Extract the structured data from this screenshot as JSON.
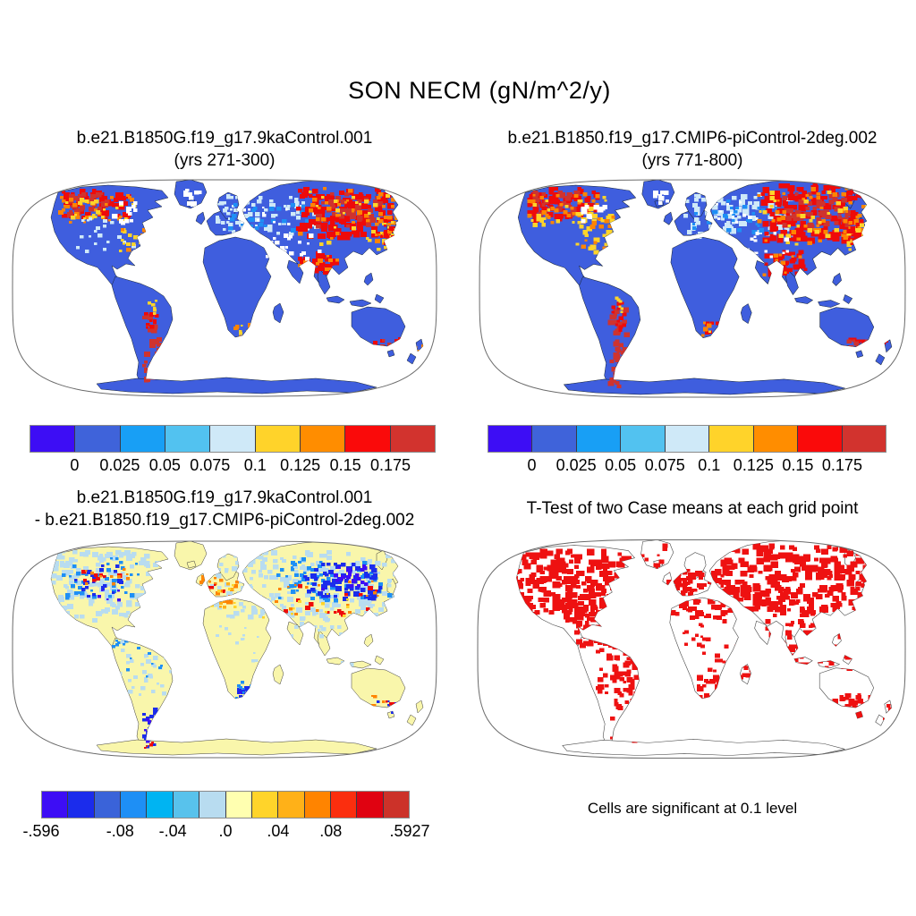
{
  "figure": {
    "title": "SON NECM (gN/m^2/y)"
  },
  "panels": [
    {
      "title_line1": "b.e21.B1850G.f19_g17.9kaControl.001",
      "title_line2": "(yrs 271-300)"
    },
    {
      "title_line1": "b.e21.B1850.f19_g17.CMIP6-piControl-2deg.002",
      "title_line2": "(yrs 771-800)"
    },
    {
      "title_line1": "b.e21.B1850G.f19_g17.9kaControl.001",
      "title_line2": "- b.e21.B1850.f19_g17.CMIP6-piControl-2deg.002"
    },
    {
      "title": "T-Test of two Case means at each grid point",
      "footnote": "Cells are significant at 0.1 level"
    }
  ],
  "colorbar_top": {
    "colors": [
      "#3d0df5",
      "#3f63da",
      "#189ff5",
      "#52c2f0",
      "#cfe9f8",
      "#ffd32a",
      "#ff8d00",
      "#fa0a0a",
      "#d2332e"
    ],
    "ticks": [
      "0",
      "0.025",
      "0.05",
      "0.075",
      "0.1",
      "0.125",
      "0.15",
      "0.175"
    ]
  },
  "colorbar_diff": {
    "colors": [
      "#3d0df5",
      "#1b2cec",
      "#3a63d9",
      "#1e8ff5",
      "#00b4f2",
      "#58c2ec",
      "#b8dcf0",
      "#ffffb0",
      "#ffd42a",
      "#ffb118",
      "#ff8400",
      "#fb2e0e",
      "#e00211",
      "#cc3229"
    ],
    "ticks": [
      {
        "label": "-.596",
        "pos": 0
      },
      {
        "label": "-.08",
        "pos": 3
      },
      {
        "label": "-.04",
        "pos": 5
      },
      {
        "label": ".0",
        "pos": 7
      },
      {
        "label": ".04",
        "pos": 9
      },
      {
        "label": ".08",
        "pos": 11
      },
      {
        "label": ".5927",
        "pos": 14
      }
    ]
  },
  "map": {
    "globe_stroke": "#6b6b6b",
    "land_colors": {
      "tl": "#3f5ede",
      "tr": "#3f5ede",
      "bl": "#f9f6ab",
      "br": "#ffffff"
    },
    "coast_colors": {
      "tl": "#16222e",
      "tr": "#16222e",
      "bl": "#3c3c3c",
      "br": "#4a4a4a"
    },
    "palette": {
      "v": "#3d0df5",
      "b": "#1b2cec",
      "rb": "#3f63da",
      "db": "#1e8ff5",
      "cy": "#00b4f2",
      "sk": "#58c2ec",
      "lb": "#b8dcf0",
      "pb": "#cfe9f8",
      "py": "#ffffb0",
      "y": "#ffd42a",
      "am": "#ffb118",
      "o": "#ff8400",
      "ro": "#fb2e0e",
      "r": "#ee0a0a",
      "dr": "#cf332e",
      "wh": "#ffffff",
      "sg": "#ee1111"
    },
    "regions": {
      "tl": [
        [
          "r",
          55,
          14,
          74,
          32,
          80,
          5
        ],
        [
          "dr",
          60,
          16,
          46,
          24,
          25,
          5
        ],
        [
          "o",
          52,
          18,
          80,
          32,
          30,
          4
        ],
        [
          "y",
          58,
          22,
          80,
          30,
          22,
          4
        ],
        [
          "pb",
          70,
          42,
          70,
          40,
          22,
          4
        ],
        [
          "y",
          118,
          52,
          52,
          30,
          16,
          4
        ],
        [
          "o",
          122,
          56,
          46,
          26,
          10,
          4
        ],
        [
          "r",
          148,
          58,
          20,
          16,
          6,
          4
        ],
        [
          "wh",
          112,
          28,
          26,
          22,
          12,
          5
        ],
        [
          "wh",
          190,
          10,
          22,
          20,
          10,
          5
        ],
        [
          "pb",
          226,
          20,
          112,
          42,
          80,
          4
        ],
        [
          "db",
          238,
          28,
          92,
          32,
          28,
          4
        ],
        [
          "wh",
          250,
          30,
          60,
          24,
          12,
          3
        ],
        [
          "r",
          318,
          10,
          104,
          56,
          140,
          6
        ],
        [
          "dr",
          338,
          18,
          72,
          36,
          45,
          5
        ],
        [
          "o",
          314,
          12,
          112,
          58,
          36,
          4
        ],
        [
          "y",
          316,
          16,
          112,
          58,
          26,
          4
        ],
        [
          "r",
          320,
          84,
          42,
          22,
          36,
          5
        ],
        [
          "o",
          318,
          86,
          46,
          24,
          12,
          4
        ],
        [
          "o",
          406,
          40,
          26,
          40,
          18,
          4
        ],
        [
          "y",
          408,
          44,
          24,
          38,
          12,
          4
        ],
        [
          "r",
          412,
          50,
          18,
          26,
          8,
          4
        ],
        [
          "dr",
          146,
          150,
          16,
          82,
          32,
          5
        ],
        [
          "r",
          148,
          144,
          14,
          30,
          10,
          4
        ],
        [
          "y",
          149,
          138,
          12,
          16,
          6,
          3
        ],
        [
          "o",
          248,
          164,
          26,
          16,
          10,
          4
        ],
        [
          "y",
          252,
          166,
          22,
          12,
          8,
          3
        ],
        [
          "r",
          404,
          180,
          30,
          12,
          10,
          4
        ],
        [
          "dr",
          408,
          182,
          24,
          10,
          6,
          4
        ],
        [
          "o",
          448,
          184,
          12,
          24,
          8,
          3
        ],
        [
          "wh",
          282,
          62,
          64,
          28,
          18,
          4
        ]
      ],
      "tr": [
        [
          "r",
          52,
          12,
          80,
          34,
          90,
          5
        ],
        [
          "dr",
          58,
          16,
          50,
          26,
          28,
          5
        ],
        [
          "o",
          50,
          18,
          84,
          32,
          32,
          4
        ],
        [
          "y",
          56,
          22,
          84,
          32,
          24,
          4
        ],
        [
          "y",
          108,
          38,
          74,
          44,
          40,
          5
        ],
        [
          "o",
          112,
          44,
          66,
          38,
          22,
          4
        ],
        [
          "r",
          150,
          62,
          24,
          16,
          8,
          4
        ],
        [
          "dr",
          160,
          56,
          16,
          12,
          5,
          4
        ],
        [
          "wh",
          112,
          28,
          26,
          20,
          10,
          5
        ],
        [
          "wh",
          190,
          10,
          22,
          20,
          10,
          5
        ],
        [
          "pb",
          224,
          18,
          124,
          46,
          100,
          5
        ],
        [
          "db",
          236,
          26,
          100,
          36,
          34,
          4
        ],
        [
          "wh",
          248,
          28,
          64,
          26,
          12,
          3
        ],
        [
          "r",
          314,
          8,
          110,
          60,
          160,
          6
        ],
        [
          "dr",
          336,
          16,
          76,
          38,
          50,
          5
        ],
        [
          "o",
          310,
          10,
          118,
          62,
          38,
          4
        ],
        [
          "y",
          312,
          14,
          118,
          62,
          28,
          4
        ],
        [
          "r",
          318,
          82,
          44,
          24,
          38,
          5
        ],
        [
          "o",
          316,
          84,
          48,
          26,
          12,
          4
        ],
        [
          "o",
          404,
          38,
          28,
          42,
          20,
          4
        ],
        [
          "y",
          406,
          42,
          26,
          40,
          13,
          4
        ],
        [
          "r",
          410,
          48,
          20,
          28,
          9,
          4
        ],
        [
          "dr",
          144,
          146,
          18,
          88,
          38,
          5
        ],
        [
          "r",
          146,
          140,
          16,
          32,
          12,
          4
        ],
        [
          "y",
          148,
          134,
          12,
          16,
          6,
          3
        ],
        [
          "r",
          250,
          160,
          26,
          20,
          14,
          4
        ],
        [
          "o",
          246,
          162,
          28,
          18,
          10,
          4
        ],
        [
          "y",
          250,
          166,
          24,
          14,
          7,
          3
        ],
        [
          "r",
          402,
          178,
          32,
          14,
          12,
          4
        ],
        [
          "dr",
          406,
          180,
          26,
          12,
          8,
          4
        ],
        [
          "r",
          448,
          182,
          12,
          26,
          8,
          3
        ],
        [
          "y",
          450,
          186,
          10,
          18,
          5,
          3
        ],
        [
          "wh",
          282,
          62,
          64,
          28,
          18,
          4
        ]
      ],
      "bl": [
        [
          "lb",
          38,
          12,
          124,
          78,
          170,
          5
        ],
        [
          "db",
          56,
          22,
          86,
          48,
          40,
          4
        ],
        [
          "b",
          66,
          28,
          64,
          38,
          22,
          4
        ],
        [
          "r",
          76,
          26,
          44,
          22,
          8,
          4
        ],
        [
          "o",
          70,
          32,
          58,
          28,
          10,
          3
        ],
        [
          "v",
          96,
          52,
          24,
          16,
          5,
          3
        ],
        [
          "lb",
          222,
          14,
          214,
          74,
          230,
          5
        ],
        [
          "db",
          296,
          22,
          126,
          48,
          70,
          4
        ],
        [
          "b",
          326,
          26,
          84,
          40,
          65,
          5
        ],
        [
          "v",
          342,
          30,
          58,
          26,
          20,
          4
        ],
        [
          "r",
          296,
          52,
          116,
          32,
          15,
          4
        ],
        [
          "o",
          286,
          48,
          126,
          36,
          16,
          3
        ],
        [
          "y",
          276,
          58,
          104,
          32,
          10,
          3
        ],
        [
          "o",
          210,
          42,
          42,
          32,
          32,
          4
        ],
        [
          "am",
          213,
          46,
          38,
          30,
          15,
          3
        ],
        [
          "y",
          216,
          50,
          34,
          28,
          10,
          3
        ],
        [
          "r",
          216,
          48,
          22,
          18,
          5,
          3
        ],
        [
          "lb",
          118,
          112,
          74,
          62,
          48,
          4
        ],
        [
          "db",
          128,
          122,
          44,
          32,
          9,
          3
        ],
        [
          "lb",
          296,
          88,
          84,
          52,
          32,
          4
        ],
        [
          "b",
          248,
          162,
          30,
          22,
          22,
          4
        ],
        [
          "db",
          250,
          158,
          32,
          26,
          13,
          3
        ],
        [
          "v",
          254,
          168,
          16,
          12,
          4,
          3
        ],
        [
          "b",
          144,
          188,
          16,
          46,
          20,
          4
        ],
        [
          "v",
          146,
          198,
          14,
          32,
          9,
          3
        ],
        [
          "r",
          148,
          226,
          10,
          10,
          3,
          3
        ],
        [
          "dr",
          150,
          230,
          8,
          8,
          2,
          3
        ],
        [
          "o",
          396,
          176,
          32,
          16,
          9,
          3
        ],
        [
          "b",
          406,
          180,
          28,
          16,
          9,
          3
        ],
        [
          "r",
          413,
          178,
          20,
          12,
          5,
          3
        ],
        [
          "v",
          426,
          182,
          12,
          12,
          4,
          3
        ],
        [
          "db",
          110,
          106,
          22,
          16,
          6,
          3
        ],
        [
          "lb",
          226,
          98,
          54,
          42,
          14,
          3
        ]
      ],
      "br": [
        [
          "sg",
          34,
          14,
          132,
          72,
          240,
          6
        ],
        [
          "sg",
          96,
          72,
          66,
          32,
          70,
          5
        ],
        [
          "sg",
          108,
          98,
          44,
          22,
          28,
          5
        ],
        [
          "sg",
          208,
          36,
          72,
          52,
          120,
          5
        ],
        [
          "sg",
          268,
          8,
          168,
          72,
          280,
          6
        ],
        [
          "sg",
          318,
          78,
          104,
          68,
          130,
          5
        ],
        [
          "sg",
          128,
          112,
          48,
          62,
          60,
          5
        ],
        [
          "sg",
          148,
          168,
          32,
          58,
          40,
          5
        ],
        [
          "sg",
          228,
          88,
          68,
          72,
          34,
          4
        ],
        [
          "sg",
          243,
          152,
          38,
          32,
          45,
          5
        ],
        [
          "sg",
          393,
          173,
          48,
          27,
          40,
          5
        ],
        [
          "sg",
          446,
          180,
          16,
          30,
          12,
          4
        ],
        [
          "sg",
          176,
          6,
          46,
          30,
          16,
          4
        ],
        [
          "sg",
          292,
          140,
          24,
          14,
          8,
          4
        ]
      ]
    }
  },
  "chart_data": [
    {
      "type": "heatmap",
      "subtype": "global-map",
      "projection": "Robinson",
      "suptitle": "SON NECM (gN/m^2/y)",
      "title": "b.e21.B1850G.f19_g17.9kaControl.001 (yrs 271-300)",
      "colorbar_bounds": [
        0,
        0.025,
        0.05,
        0.075,
        0.1,
        0.125,
        0.15,
        0.175
      ],
      "colorbar_colors": [
        "#3d0df5",
        "#3f63da",
        "#189ff5",
        "#52c2f0",
        "#cfe9f8",
        "#ffd32a",
        "#ff8d00",
        "#fa0a0a",
        "#d2332e"
      ],
      "ocean_color": "#ffffff",
      "pattern_summary": "Most vegetated land in 0-0.05 range (blue); values above 0.175 (red/dark red) over Alaska and NW Canada, eastern Siberia, Tibetan Plateau, Patagonia, South African coast, SE Australia and New Zealand; 0.05-0.1 (light blue) over N Europe and W Siberia; ocean and ice-free cells masked white"
    },
    {
      "type": "heatmap",
      "subtype": "global-map",
      "projection": "Robinson",
      "suptitle": "SON NECM (gN/m^2/y)",
      "title": "b.e21.B1850.f19_g17.CMIP6-piControl-2deg.002 (yrs 771-800)",
      "colorbar_bounds": [
        0,
        0.025,
        0.05,
        0.075,
        0.1,
        0.125,
        0.15,
        0.175
      ],
      "colorbar_colors": [
        "#3d0df5",
        "#3f63da",
        "#189ff5",
        "#52c2f0",
        "#cfe9f8",
        "#ffd32a",
        "#ff8d00",
        "#fa0a0a",
        "#d2332e"
      ],
      "ocean_color": "#ffffff",
      "pattern_summary": "Similar to 9kaControl: high values over Alaska/NW Canada, a yellow-orange band through central-eastern Canada, light blues over Scandinavia and W Siberia, large red region in E Siberia and Tibet, red Patagonia, South African tip, SE Australia, New Zealand"
    },
    {
      "type": "heatmap",
      "subtype": "global-map-difference",
      "projection": "Robinson",
      "title": "b.e21.B1850G.f19_g17.9kaControl.001 - b.e21.B1850.f19_g17.CMIP6-piControl-2deg.002",
      "colorbar_bounds": [
        -0.596,
        -0.12,
        -0.1,
        -0.08,
        -0.06,
        -0.04,
        -0.02,
        0.0,
        0.02,
        0.04,
        0.06,
        0.08,
        0.1,
        0.12,
        0.5927
      ],
      "colorbar_labeled_ticks": [
        "-.596",
        "-.08",
        "-.04",
        ".0",
        ".04",
        ".08",
        ".5927"
      ],
      "colorbar_colors": [
        "#3d0df5",
        "#1b2cec",
        "#3a63d9",
        "#1e8ff5",
        "#00b4f2",
        "#58c2ec",
        "#b8dcf0",
        "#ffffb0",
        "#ffd42a",
        "#ffb118",
        "#ff8400",
        "#fb2e0e",
        "#e00211",
        "#cc3229"
      ],
      "pattern_summary": "Mostly near-zero pale yellow; negative (blue) differences over Canada, northern Eurasia with strong negative core in central Siberia, South Africa, Patagonia; positive (orange/red) over UK/western Europe and scattered Siberian and central Asian cells; mixed signs in SE Australia"
    },
    {
      "type": "map",
      "subtype": "significance-mask",
      "projection": "Robinson",
      "title": "T-Test of two Case means at each grid point",
      "note": "Cells are significant at 0.1 level",
      "significant_color": "#ee1111",
      "pattern_summary": "Red significant cells cover most of Canada, NE USA, Europe, northern Eurasia, East and Southeast Asia, the Andes and southern South America, southern Africa, SE Australia and New Zealand; tropics, Sahara, Australia interior and Antarctica mostly not significant"
    }
  ]
}
